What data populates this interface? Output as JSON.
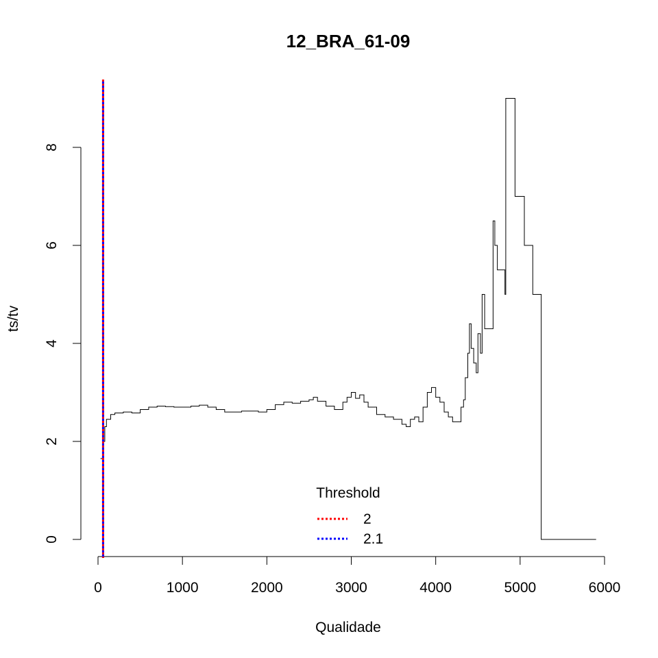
{
  "chart_data": {
    "type": "line",
    "title": "12_BRA_61-09",
    "xlabel": "Qualidade",
    "ylabel": "ts/tv",
    "xlim": [
      0,
      6000
    ],
    "ylim": [
      0,
      9
    ],
    "x_ticks": [
      0,
      1000,
      2000,
      3000,
      4000,
      5000,
      6000
    ],
    "y_ticks": [
      0,
      2,
      4,
      6,
      8
    ],
    "grid": false,
    "series": [
      {
        "color": "#000000",
        "step": true,
        "x": [
          30,
          60,
          80,
          100,
          150,
          200,
          300,
          400,
          500,
          600,
          700,
          800,
          900,
          1000,
          1100,
          1200,
          1300,
          1400,
          1500,
          1600,
          1700,
          1800,
          1900,
          2000,
          2100,
          2200,
          2300,
          2400,
          2500,
          2550,
          2600,
          2700,
          2800,
          2900,
          2950,
          3000,
          3050,
          3100,
          3150,
          3200,
          3300,
          3400,
          3500,
          3600,
          3650,
          3700,
          3750,
          3800,
          3850,
          3900,
          3950,
          4000,
          4050,
          4100,
          4150,
          4200,
          4250,
          4300,
          4330,
          4350,
          4380,
          4400,
          4420,
          4450,
          4480,
          4500,
          4530,
          4550,
          4580,
          4600,
          4650,
          4680,
          4700,
          4730,
          4750,
          4800,
          4820,
          4830,
          4900,
          4940,
          5000,
          5050,
          5100,
          5150,
          5200,
          5250,
          5900
        ],
        "values": [
          1.65,
          2.0,
          2.3,
          2.45,
          2.55,
          2.58,
          2.6,
          2.58,
          2.65,
          2.7,
          2.72,
          2.71,
          2.7,
          2.7,
          2.72,
          2.74,
          2.7,
          2.65,
          2.6,
          2.6,
          2.62,
          2.62,
          2.6,
          2.65,
          2.75,
          2.8,
          2.78,
          2.82,
          2.85,
          2.9,
          2.82,
          2.72,
          2.65,
          2.8,
          2.9,
          3.0,
          2.88,
          2.95,
          2.8,
          2.7,
          2.55,
          2.5,
          2.45,
          2.35,
          2.3,
          2.45,
          2.5,
          2.4,
          2.7,
          3.0,
          3.1,
          2.9,
          2.8,
          2.6,
          2.5,
          2.4,
          2.4,
          2.7,
          2.85,
          3.3,
          3.8,
          4.4,
          3.9,
          3.6,
          3.4,
          4.2,
          3.8,
          5.0,
          4.3,
          4.3,
          4.3,
          6.5,
          6.0,
          5.5,
          5.5,
          5.5,
          5.0,
          9.0,
          9.0,
          7.0,
          7.0,
          6.0,
          6.0,
          5.0,
          5.0,
          0.0,
          0.0
        ]
      }
    ],
    "vlines": [
      {
        "name": "2",
        "x": 60,
        "color": "#ff0000",
        "style": "dotted"
      },
      {
        "name": "2.1",
        "x": 60,
        "color": "#0000ff",
        "style": "dotted"
      }
    ],
    "legend": {
      "title": "Threshold",
      "position": "bottom-center",
      "entries": [
        {
          "label": "2",
          "color": "#ff0000",
          "style": "dotted"
        },
        {
          "label": "2.1",
          "color": "#0000ff",
          "style": "dotted"
        }
      ]
    }
  }
}
